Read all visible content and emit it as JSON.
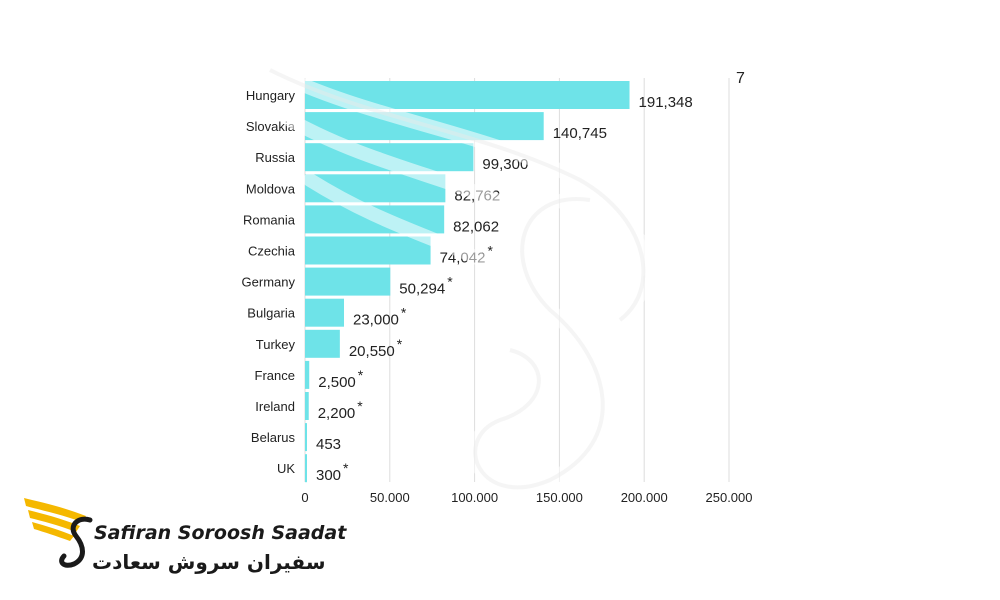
{
  "chart_data": {
    "type": "bar",
    "orientation": "horizontal",
    "title": "",
    "xlabel": "",
    "ylabel": "",
    "categories": [
      "Hungary",
      "Slovakia",
      "Russia",
      "Moldova",
      "Romania",
      "Czechia",
      "Germany",
      "Bulgaria",
      "Turkey",
      "France",
      "Ireland",
      "Belarus",
      "UK"
    ],
    "values": [
      191348,
      140745,
      99300,
      82762,
      82062,
      74042,
      50294,
      23000,
      20550,
      2500,
      2200,
      453,
      300
    ],
    "value_labels": [
      "191,348",
      "140,745",
      "99,300",
      "82,762",
      "82,062",
      "74,042",
      "50,294",
      "23,000",
      "20,550",
      "2,500",
      "2,200",
      "453",
      "300"
    ],
    "footnote_mark": "*",
    "footnote_flags": [
      false,
      false,
      false,
      false,
      false,
      true,
      true,
      true,
      true,
      true,
      true,
      false,
      true
    ],
    "x_ticks": [
      0,
      50000,
      100000,
      150000,
      200000,
      250000
    ],
    "x_tick_labels": [
      "0",
      "50.000",
      "100.000",
      "150.000",
      "200.000",
      "250.000"
    ],
    "xlim": [
      0,
      250000
    ],
    "grid": true,
    "legend": "none",
    "bar_color": "#6ee3e8"
  },
  "corner_mark": "7",
  "logo": {
    "name_en": "Safiran Soroosh Saadat",
    "name_fa": "سفیران سروش سعادت",
    "icon": "winged-s-logo-icon",
    "accent_color": "#f5b800"
  },
  "watermark_icon": "swan-watermark-icon"
}
